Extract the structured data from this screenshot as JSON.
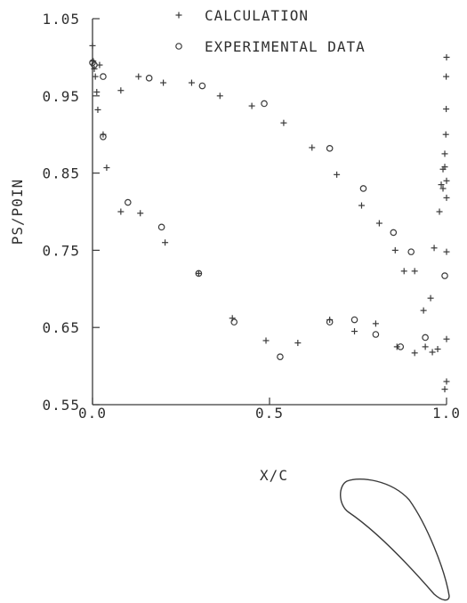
{
  "chart_data": {
    "type": "scatter",
    "xlabel": "X/C",
    "ylabel": "PS/P0IN",
    "xlim": [
      0.0,
      1.0
    ],
    "ylim": [
      0.55,
      1.05
    ],
    "x_ticks": [
      "0.0",
      "0.5",
      "1.0"
    ],
    "y_ticks": [
      "1.05",
      "0.95",
      "0.85",
      "0.75",
      "0.65",
      "0.55"
    ],
    "legend_position": "top",
    "grid": false,
    "color": "#3a3a3a",
    "series": [
      {
        "name": "CALCULATION",
        "marker": "plus",
        "points": [
          [
            0.0,
            1.015
          ],
          [
            0.002,
            0.995
          ],
          [
            0.005,
            0.985
          ],
          [
            0.008,
            0.975
          ],
          [
            0.012,
            0.955
          ],
          [
            0.015,
            0.932
          ],
          [
            0.02,
            0.99
          ],
          [
            0.03,
            0.9
          ],
          [
            0.04,
            0.857
          ],
          [
            0.08,
            0.957
          ],
          [
            0.08,
            0.8
          ],
          [
            0.13,
            0.975
          ],
          [
            0.135,
            0.798
          ],
          [
            0.2,
            0.967
          ],
          [
            0.205,
            0.76
          ],
          [
            0.28,
            0.967
          ],
          [
            0.3,
            0.72
          ],
          [
            0.36,
            0.95
          ],
          [
            0.395,
            0.662
          ],
          [
            0.45,
            0.937
          ],
          [
            0.49,
            0.633
          ],
          [
            0.54,
            0.915
          ],
          [
            0.58,
            0.63
          ],
          [
            0.62,
            0.883
          ],
          [
            0.67,
            0.66
          ],
          [
            0.69,
            0.848
          ],
          [
            0.74,
            0.645
          ],
          [
            0.76,
            0.808
          ],
          [
            0.8,
            0.655
          ],
          [
            0.81,
            0.785
          ],
          [
            0.855,
            0.75
          ],
          [
            0.86,
            0.625
          ],
          [
            0.88,
            0.723
          ],
          [
            0.91,
            0.617
          ],
          [
            0.91,
            0.723
          ],
          [
            0.935,
            0.672
          ],
          [
            0.94,
            0.625
          ],
          [
            0.955,
            0.688
          ],
          [
            0.96,
            0.618
          ],
          [
            0.965,
            0.753
          ],
          [
            0.975,
            0.622
          ],
          [
            0.98,
            0.8
          ],
          [
            0.985,
            0.835
          ],
          [
            0.99,
            0.855
          ],
          [
            0.99,
            0.83
          ],
          [
            0.995,
            0.858
          ],
          [
            0.995,
            0.875
          ],
          [
            0.998,
            0.9
          ],
          [
            0.999,
            0.933
          ],
          [
            0.999,
            0.975
          ],
          [
            1.0,
            1.0
          ],
          [
            0.995,
            0.57
          ],
          [
            1.0,
            0.58
          ],
          [
            1.0,
            0.635
          ],
          [
            1.0,
            0.748
          ],
          [
            1.0,
            0.818
          ],
          [
            1.0,
            0.84
          ]
        ]
      },
      {
        "name": "EXPERIMENTAL DATA",
        "marker": "circle",
        "points": [
          [
            0.0,
            0.993
          ],
          [
            0.005,
            0.99
          ],
          [
            0.03,
            0.975
          ],
          [
            0.03,
            0.897
          ],
          [
            0.1,
            0.812
          ],
          [
            0.16,
            0.973
          ],
          [
            0.195,
            0.78
          ],
          [
            0.3,
            0.72
          ],
          [
            0.31,
            0.963
          ],
          [
            0.4,
            0.657
          ],
          [
            0.485,
            0.94
          ],
          [
            0.53,
            0.612
          ],
          [
            0.67,
            0.657
          ],
          [
            0.67,
            0.882
          ],
          [
            0.74,
            0.66
          ],
          [
            0.765,
            0.83
          ],
          [
            0.8,
            0.641
          ],
          [
            0.85,
            0.773
          ],
          [
            0.87,
            0.625
          ],
          [
            0.9,
            0.748
          ],
          [
            0.94,
            0.637
          ],
          [
            0.995,
            0.717
          ]
        ]
      }
    ]
  }
}
